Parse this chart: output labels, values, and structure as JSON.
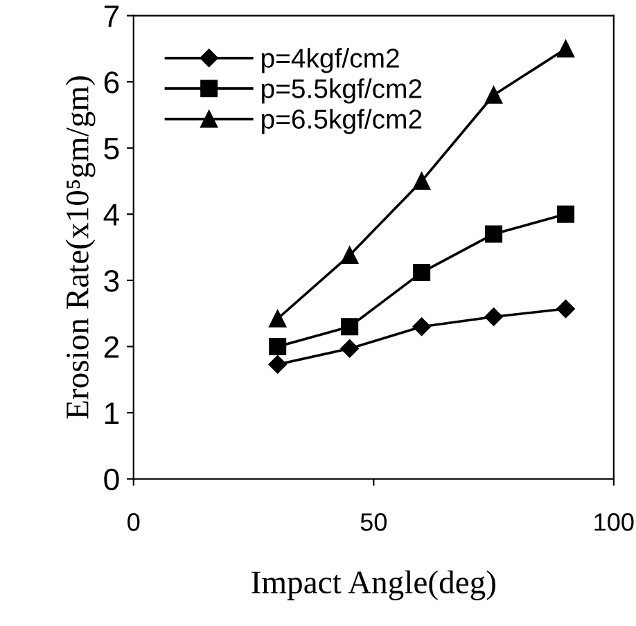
{
  "chart_data": {
    "type": "line",
    "xlabel": "Impact Angle(deg)",
    "ylabel": "Erosion Rate(x10⁵gm/gm)",
    "x": [
      30,
      45,
      60,
      75,
      90
    ],
    "series": [
      {
        "name": "p=4kgf/cm2",
        "color": "#000000",
        "marker": "diamond",
        "values": [
          1.73,
          1.97,
          2.3,
          2.45,
          2.57
        ]
      },
      {
        "name": "p=5.5kgf/cm2",
        "color": "#000000",
        "marker": "square",
        "values": [
          2.0,
          2.3,
          3.12,
          3.7,
          4.0
        ]
      },
      {
        "name": "p=6.5kgf/cm2",
        "color": "#000000",
        "marker": "triangle",
        "values": [
          2.42,
          3.38,
          4.5,
          5.8,
          6.5
        ]
      }
    ],
    "xlim": [
      0,
      100
    ],
    "xticks": [
      0,
      50,
      100
    ],
    "ylim": [
      0,
      7
    ],
    "yticks": [
      0,
      1,
      2,
      3,
      4,
      5,
      6,
      7
    ],
    "grid": false,
    "legend": "top left",
    "line_style": "solid"
  }
}
